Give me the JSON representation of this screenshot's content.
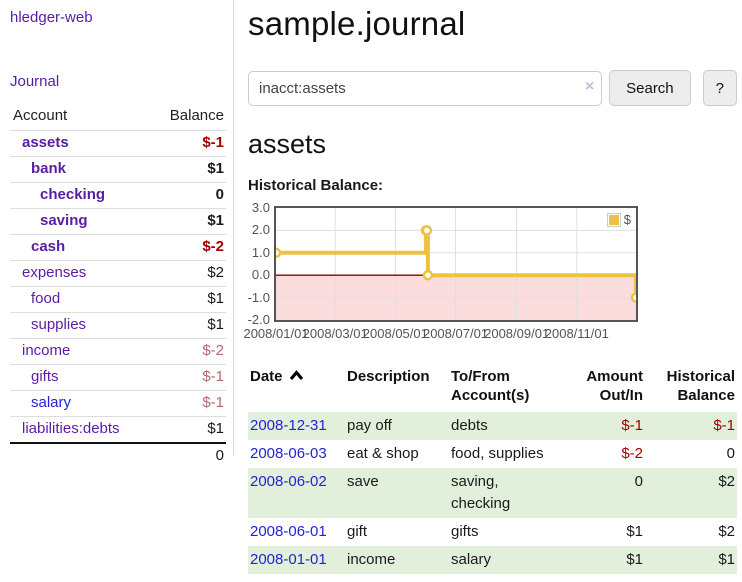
{
  "app": {
    "title": "hledger-web"
  },
  "colors": {
    "link_purple": "#5a1ca2",
    "link_blue": "#2323d6",
    "negative_strong": "#a40000",
    "negative_muted": "#b36b6b",
    "stripe_green": "#e2efda",
    "chart_line": "#edc240",
    "chart_negative_region": "#fbdcdc",
    "chart_zero_line": "#8b0000"
  },
  "sidebar": {
    "journal_link": "Journal",
    "accounts_table": {
      "headers": {
        "account": "Account",
        "balance": "Balance"
      },
      "rows": [
        {
          "name": "assets",
          "balance": "$-1",
          "indent": 1,
          "bold": true,
          "neg": "strong"
        },
        {
          "name": "bank",
          "balance": "$1",
          "indent": 2,
          "bold": true,
          "neg": null
        },
        {
          "name": "checking",
          "balance": "0",
          "indent": 3,
          "bold": true,
          "neg": null
        },
        {
          "name": "saving",
          "balance": "$1",
          "indent": 3,
          "bold": true,
          "neg": null
        },
        {
          "name": "cash",
          "balance": "$-2",
          "indent": 2,
          "bold": true,
          "neg": "strong"
        },
        {
          "name": "expenses",
          "balance": "$2",
          "indent": 1,
          "bold": false,
          "neg": null
        },
        {
          "name": "food",
          "balance": "$1",
          "indent": 2,
          "bold": false,
          "neg": null
        },
        {
          "name": "supplies",
          "balance": "$1",
          "indent": 2,
          "bold": false,
          "neg": null
        },
        {
          "name": "income",
          "balance": "$-2",
          "indent": 1,
          "bold": false,
          "neg": "muted"
        },
        {
          "name": "gifts",
          "balance": "$-1",
          "indent": 2,
          "bold": false,
          "neg": "muted"
        },
        {
          "name": "salary",
          "balance": "$-1",
          "indent": 2,
          "bold": false,
          "neg": "muted",
          "link": "blue"
        },
        {
          "name": "liabilities:debts",
          "balance": "$1",
          "indent": 1,
          "bold": false,
          "neg": null,
          "last": true
        }
      ],
      "total": "0"
    }
  },
  "main": {
    "title": "sample.journal",
    "search": {
      "value": "inacct:assets",
      "clear_icon": "×",
      "button_label": "Search",
      "help_label": "?"
    },
    "account_heading": "assets",
    "chart_label": "Historical Balance:"
  },
  "chart_data": {
    "type": "line",
    "step": true,
    "title": "Historical Balance:",
    "ylim": [
      -2,
      3
    ],
    "yticks": [
      {
        "label": "3.0",
        "value": 3
      },
      {
        "label": "2.0",
        "value": 2
      },
      {
        "label": "1.0",
        "value": 1
      },
      {
        "label": "0.0",
        "value": 0
      },
      {
        "label": "-1.0",
        "value": -1
      },
      {
        "label": "-2.0",
        "value": -2
      }
    ],
    "xticks": [
      {
        "label": "2008/01/01",
        "date": "2008-01-01"
      },
      {
        "label": "2008/03/01",
        "date": "2008-03-01"
      },
      {
        "label": "2008/05/01",
        "date": "2008-05-01"
      },
      {
        "label": "2008/07/01",
        "date": "2008-07-01"
      },
      {
        "label": "2008/09/01",
        "date": "2008-09-01"
      },
      {
        "label": "2008/11/01",
        "date": "2008-11-01"
      }
    ],
    "x_range": [
      "2008-01-01",
      "2008-12-31"
    ],
    "legend": {
      "label": "$",
      "position": "top-right"
    },
    "series": [
      {
        "name": "$",
        "points": [
          {
            "date": "2008-01-01",
            "value": 1
          },
          {
            "date": "2008-06-01",
            "value": 2
          },
          {
            "date": "2008-06-02",
            "value": 2
          },
          {
            "date": "2008-06-03",
            "value": 0
          },
          {
            "date": "2008-12-31",
            "value": -1
          }
        ]
      }
    ]
  },
  "register_table": {
    "headers": {
      "date": "Date",
      "description": "Description",
      "accounts": "To/From Account(s)",
      "amount": "Amount Out/In",
      "balance": "Historical Balance"
    },
    "sort": {
      "column": "date",
      "direction": "asc"
    },
    "rows": [
      {
        "date": "2008-12-31",
        "description": "pay off",
        "accounts": "debts",
        "amount": "$-1",
        "balance": "$-1"
      },
      {
        "date": "2008-06-03",
        "description": "eat & shop",
        "accounts": "food, supplies",
        "amount": "$-2",
        "balance": "0"
      },
      {
        "date": "2008-06-02",
        "description": "save",
        "accounts": "saving, checking",
        "amount": "0",
        "balance": "$2"
      },
      {
        "date": "2008-06-01",
        "description": "gift",
        "accounts": "gifts",
        "amount": "$1",
        "balance": "$2"
      },
      {
        "date": "2008-01-01",
        "description": "income",
        "accounts": "salary",
        "amount": "$1",
        "balance": "$1"
      }
    ]
  }
}
